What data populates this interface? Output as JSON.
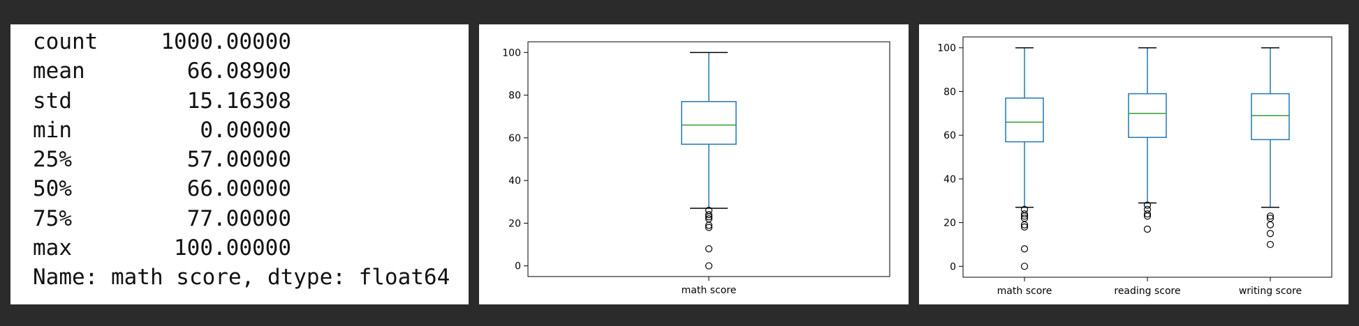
{
  "stats": {
    "rows": [
      {
        "key": "count",
        "value": "1000.00000"
      },
      {
        "key": "mean",
        "value": "66.08900"
      },
      {
        "key": "std",
        "value": "15.16308"
      },
      {
        "key": "min",
        "value": "0.00000"
      },
      {
        "key": "25%",
        "value": "57.00000"
      },
      {
        "key": "50%",
        "value": "66.00000"
      },
      {
        "key": "75%",
        "value": "77.00000"
      },
      {
        "key": "max",
        "value": "100.00000"
      }
    ],
    "footer": "Name: math score, dtype: float64"
  },
  "chart_data": [
    {
      "type": "box",
      "ylim": [
        -5,
        105
      ],
      "yticks": [
        0,
        20,
        40,
        60,
        80,
        100
      ],
      "colors": {
        "box": "#1f77b4",
        "median": "#2ca02c",
        "cap": "#000000",
        "flier": "#000000"
      },
      "categories": [
        "math score"
      ],
      "series": [
        {
          "name": "math score",
          "q1": 57,
          "median": 66,
          "q3": 77,
          "whisker_low": 27,
          "whisker_high": 100,
          "outliers": [
            0,
            8,
            18,
            19,
            22,
            23,
            24,
            26
          ]
        }
      ]
    },
    {
      "type": "box",
      "ylim": [
        -5,
        105
      ],
      "yticks": [
        0,
        20,
        40,
        60,
        80,
        100
      ],
      "colors": {
        "box": "#1f77b4",
        "median": "#2ca02c",
        "cap": "#000000",
        "flier": "#000000"
      },
      "categories": [
        "math score",
        "reading score",
        "writing score"
      ],
      "series": [
        {
          "name": "math score",
          "q1": 57,
          "median": 66,
          "q3": 77,
          "whisker_low": 27,
          "whisker_high": 100,
          "outliers": [
            0,
            8,
            18,
            19,
            22,
            23,
            24,
            26
          ]
        },
        {
          "name": "reading score",
          "q1": 59,
          "median": 70,
          "q3": 79,
          "whisker_low": 29,
          "whisker_high": 100,
          "outliers": [
            17,
            23,
            24,
            26,
            28
          ]
        },
        {
          "name": "writing score",
          "q1": 58,
          "median": 69,
          "q3": 79,
          "whisker_low": 27,
          "whisker_high": 100,
          "outliers": [
            10,
            15,
            19,
            22,
            23
          ]
        }
      ]
    }
  ]
}
